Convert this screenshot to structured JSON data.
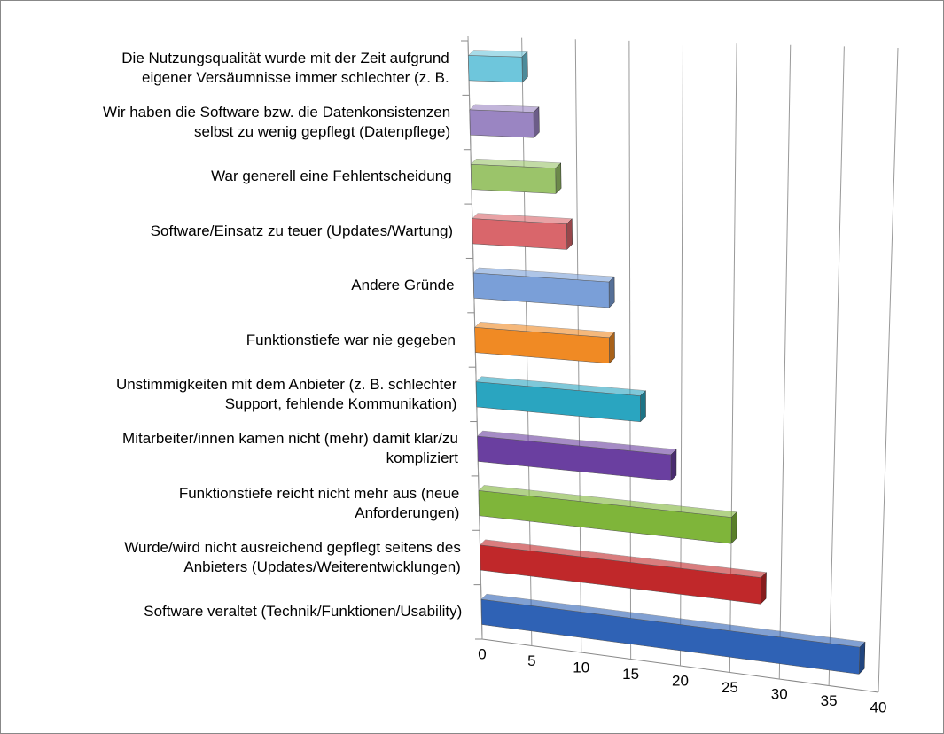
{
  "chart_data": {
    "type": "bar3d",
    "categories": [
      "Die Nutzungsqualität wurde mit der Zeit aufgrund\neigener Versäumnisse immer schlechter (z. B.",
      "Wir haben die Software bzw. die Datenkonsistenzen\nselbst zu wenig gepflegt (Datenpflege)",
      "War generell eine Fehlentscheidung",
      "Software/Einsatz zu teuer (Updates/Wartung)",
      "Andere Gründe",
      "Funktionstiefe war nie gegeben",
      "Unstimmigkeiten mit dem Anbieter (z. B. schlechter\nSupport, fehlende Kommunikation)",
      "Mitarbeiter/innen kamen nicht (mehr) damit klar/zu\nkompliziert",
      "Funktionstiefe reicht nicht mehr aus (neue\nAnforderungen)",
      "Wurde/wird nicht ausreichend gepflegt seitens des\nAnbieters (Updates/Weiterentwicklungen)",
      "Software veraltet (Technik/Funktionen/Usability)"
    ],
    "values": [
      5,
      6,
      8,
      9,
      13,
      13,
      16,
      19,
      25,
      28,
      38
    ],
    "colors": [
      "#6ec6dc",
      "#9a85c2",
      "#9bc46a",
      "#d9666b",
      "#7a9fd8",
      "#f08a24",
      "#2aa5c0",
      "#6a3fa0",
      "#7fb53a",
      "#c0282a",
      "#2f62b5"
    ],
    "xlim": [
      0,
      40
    ],
    "xticks": [
      0,
      5,
      10,
      15,
      20,
      25,
      30,
      35,
      40
    ],
    "grid": true
  }
}
